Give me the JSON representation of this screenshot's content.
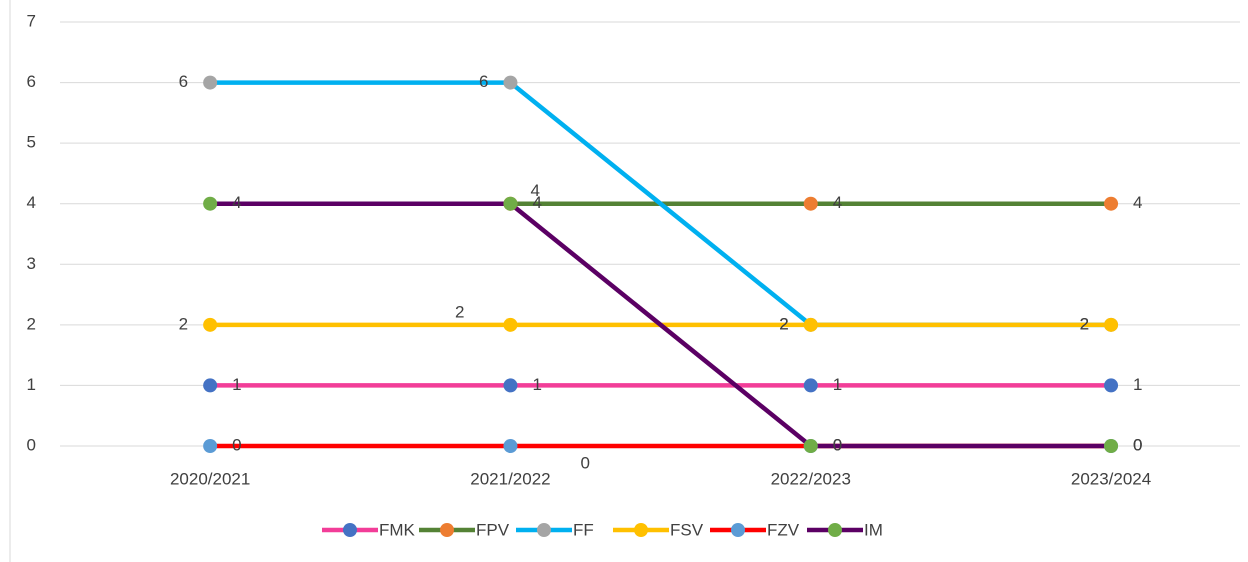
{
  "chart_data": {
    "type": "line",
    "categories": [
      "2020/2021",
      "2021/2022",
      "2022/2023",
      "2023/2024"
    ],
    "series": [
      {
        "name": "FMK",
        "color": "#f23d98",
        "marker_color": "#4472c4",
        "values": [
          1,
          1,
          1,
          1
        ]
      },
      {
        "name": "FPV",
        "color": "#548235",
        "marker_color": "#ed7d31",
        "values": [
          null,
          4,
          4,
          4
        ]
      },
      {
        "name": "FF",
        "color": "#00b0f0",
        "marker_color": "#a5a5a5",
        "values": [
          6,
          6,
          2,
          2
        ]
      },
      {
        "name": "FSV",
        "color": "#ffc000",
        "marker_color": "#ffc000",
        "values": [
          2,
          2,
          2,
          2
        ]
      },
      {
        "name": "FZV",
        "color": "#ff0000",
        "marker_color": "#5b9bd5",
        "values": [
          0,
          0,
          0,
          0
        ]
      },
      {
        "name": "IM",
        "color": "#5b0064",
        "marker_color": "#70ad47",
        "values": [
          4,
          4,
          0,
          0
        ]
      }
    ],
    "ylim": [
      0,
      7
    ],
    "yticks": [
      0,
      1,
      2,
      3,
      4,
      5,
      6,
      7
    ],
    "grid": true,
    "legend": "bottom"
  }
}
